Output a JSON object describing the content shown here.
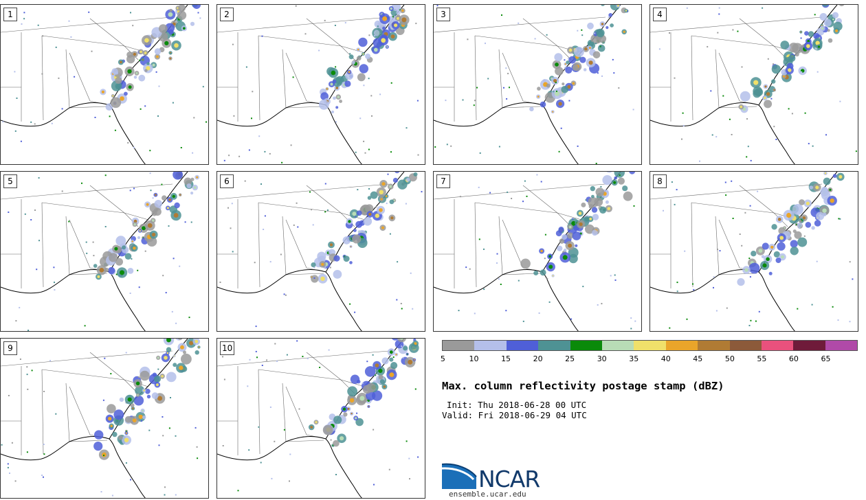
{
  "panels": [
    {
      "label": "1"
    },
    {
      "label": "2"
    },
    {
      "label": "3"
    },
    {
      "label": "4"
    },
    {
      "label": "5"
    },
    {
      "label": "6"
    },
    {
      "label": "7"
    },
    {
      "label": "8"
    },
    {
      "label": "9"
    },
    {
      "label": "10"
    }
  ],
  "colorbar": {
    "ticks": [
      "5",
      "10",
      "15",
      "20",
      "25",
      "30",
      "35",
      "40",
      "45",
      "50",
      "55",
      "60",
      "65"
    ],
    "colors": [
      "#9a9a9a",
      "#b4bfea",
      "#4f5fd8",
      "#4e9294",
      "#0a8a0a",
      "#b8dcb6",
      "#f0e06a",
      "#eaa52a",
      "#b07b34",
      "#8c5a3a",
      "#e9517d",
      "#6f1b3a",
      "#b04aa8"
    ]
  },
  "title": "Max. column reflectivity postage stamp (dBZ)",
  "init": "Init: Thu 2018-06-28 00 UTC",
  "valid": "Valid: Fri 2018-06-29 04 UTC",
  "logo_text": "NCAR",
  "site": "ensemble.ucar.edu"
}
